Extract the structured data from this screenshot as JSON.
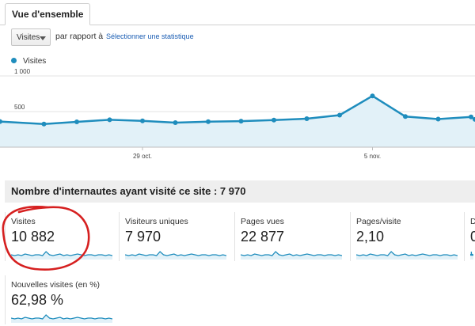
{
  "tab": {
    "label": "Vue d'ensemble"
  },
  "controls": {
    "metric_select": "Visites",
    "compare_label": "par rapport à",
    "select_stat_link": "Sélectionner une statistique"
  },
  "legend": {
    "label": "Visites"
  },
  "colors": {
    "accent": "#1f8dbd",
    "fill": "#e2f1f8",
    "annotation": "#d62020"
  },
  "chart_data": {
    "type": "area",
    "ylim": [
      0,
      1000
    ],
    "yticks": [
      {
        "value": 1000,
        "label": "1 000"
      },
      {
        "value": 500,
        "label": "500"
      }
    ],
    "xticks": [
      {
        "index": 4,
        "label": "29 oct."
      },
      {
        "index": 11,
        "label": "5 nov."
      }
    ],
    "series": [
      {
        "name": "Visites",
        "values": [
          360,
          325,
          355,
          385,
          370,
          345,
          358,
          365,
          380,
          400,
          450,
          720,
          430,
          395,
          425,
          390
        ]
      }
    ]
  },
  "summary": {
    "text": "Nombre d'internautes ayant visité ce site : 7 970"
  },
  "metrics": [
    {
      "label": "Visites",
      "value": "10 882"
    },
    {
      "label": "Visiteurs uniques",
      "value": "7 970"
    },
    {
      "label": "Pages vues",
      "value": "22 877"
    },
    {
      "label": "Pages/visite",
      "value": "2,10"
    },
    {
      "label": "D",
      "value": "0"
    },
    {
      "label": "Nouvelles visites (en %)",
      "value": "62,98 %"
    }
  ]
}
